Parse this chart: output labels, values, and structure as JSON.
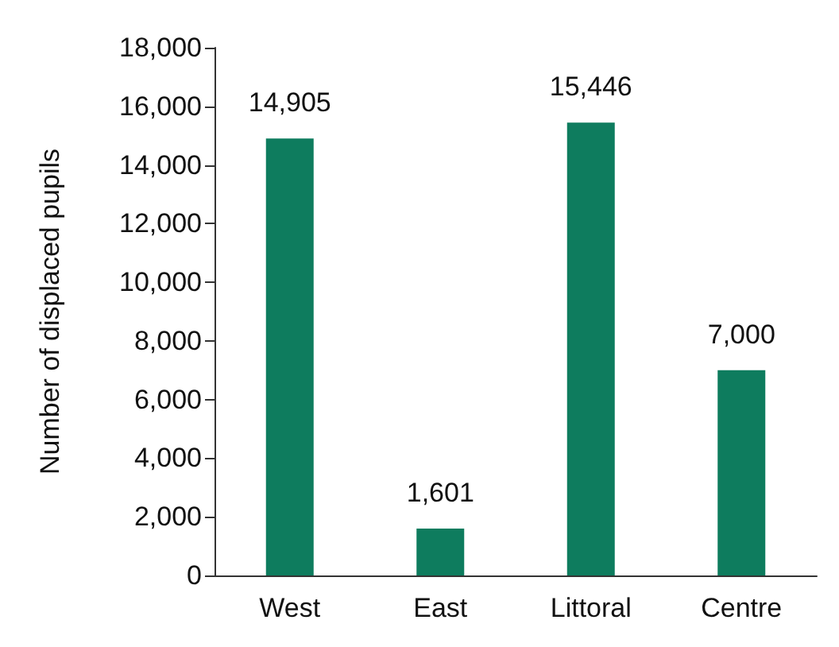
{
  "chart_data": {
    "type": "bar",
    "ylabel": "Number of displaced pupils",
    "categories": [
      "West",
      "East",
      "Littoral",
      "Centre"
    ],
    "values": [
      14905,
      1601,
      15446,
      7000
    ],
    "color": "#0e7c5e",
    "value_labels": [
      "14,905",
      "1,601",
      "15,446",
      "7,000"
    ],
    "ylim": [
      0,
      18000
    ],
    "yticks": [
      0,
      {
        "value": 2000,
        "label": "2,000"
      },
      {
        "value": 4000,
        "label": "4,000"
      },
      {
        "value": 6000,
        "label": "6,000"
      },
      {
        "value": 8000,
        "label": "8,000"
      },
      {
        "value": 10000,
        "label": "10,000"
      },
      {
        "value": 12000,
        "label": "12,000"
      },
      {
        "value": 14000,
        "label": "14,000"
      },
      {
        "value": 16000,
        "label": "16,000"
      },
      {
        "value": 18000,
        "label": "18,000"
      }
    ],
    "grid": false
  }
}
